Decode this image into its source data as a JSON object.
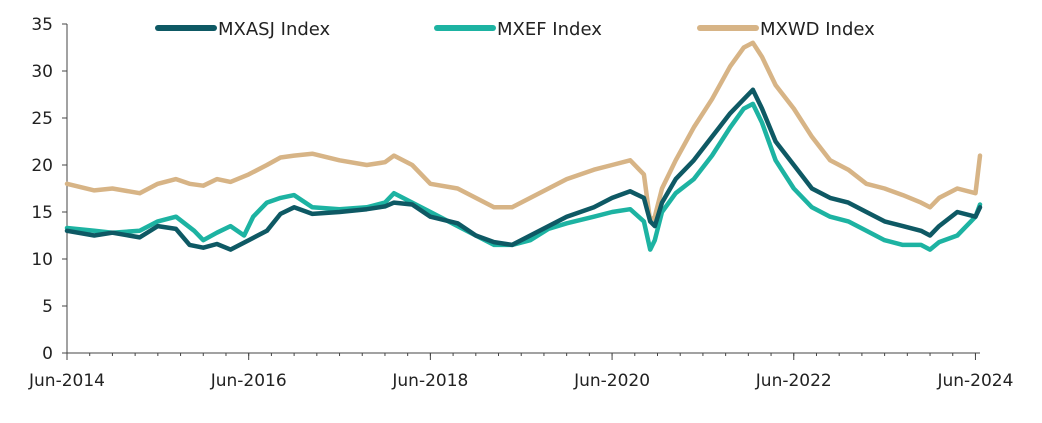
{
  "chart_data": {
    "type": "line",
    "title": "",
    "xlabel": "",
    "ylabel": "",
    "x_tick_labels": [
      "Jun-2014",
      "Jun-2016",
      "Jun-2018",
      "Jun-2020",
      "Jun-2022",
      "Jun-2024"
    ],
    "x_tick_years": [
      2014.5,
      2016.5,
      2018.5,
      2020.5,
      2022.5,
      2024.5
    ],
    "xlim": [
      2014.5,
      2024.55
    ],
    "y_tick_labels": [
      "0",
      "5",
      "10",
      "15",
      "20",
      "25",
      "30",
      "35"
    ],
    "y_ticks": [
      0,
      5,
      10,
      15,
      20,
      25,
      30,
      35
    ],
    "ylim": [
      0,
      35
    ],
    "grid": false,
    "legend_position": "top",
    "series": [
      {
        "name": "MXASJ Index",
        "color": "#0e5964",
        "points": [
          [
            2014.5,
            13.0
          ],
          [
            2014.8,
            12.5
          ],
          [
            2015.0,
            12.8
          ],
          [
            2015.3,
            12.3
          ],
          [
            2015.5,
            13.5
          ],
          [
            2015.7,
            13.2
          ],
          [
            2015.85,
            11.5
          ],
          [
            2016.0,
            11.2
          ],
          [
            2016.15,
            11.6
          ],
          [
            2016.3,
            11.0
          ],
          [
            2016.5,
            12.0
          ],
          [
            2016.7,
            13.0
          ],
          [
            2016.85,
            14.8
          ],
          [
            2017.0,
            15.5
          ],
          [
            2017.2,
            14.8
          ],
          [
            2017.5,
            15.0
          ],
          [
            2017.8,
            15.3
          ],
          [
            2018.0,
            15.6
          ],
          [
            2018.1,
            16.0
          ],
          [
            2018.3,
            15.8
          ],
          [
            2018.5,
            14.5
          ],
          [
            2018.8,
            13.8
          ],
          [
            2019.0,
            12.5
          ],
          [
            2019.2,
            11.8
          ],
          [
            2019.4,
            11.5
          ],
          [
            2019.6,
            12.5
          ],
          [
            2019.8,
            13.5
          ],
          [
            2020.0,
            14.5
          ],
          [
            2020.3,
            15.5
          ],
          [
            2020.5,
            16.5
          ],
          [
            2020.7,
            17.2
          ],
          [
            2020.85,
            16.5
          ],
          [
            2020.92,
            14.0
          ],
          [
            2020.97,
            13.5
          ],
          [
            2021.05,
            16.0
          ],
          [
            2021.2,
            18.5
          ],
          [
            2021.4,
            20.5
          ],
          [
            2021.6,
            23.0
          ],
          [
            2021.8,
            25.5
          ],
          [
            2021.95,
            27.0
          ],
          [
            2022.05,
            28.0
          ],
          [
            2022.15,
            26.0
          ],
          [
            2022.3,
            22.5
          ],
          [
            2022.5,
            20.0
          ],
          [
            2022.7,
            17.5
          ],
          [
            2022.9,
            16.5
          ],
          [
            2023.1,
            16.0
          ],
          [
            2023.3,
            15.0
          ],
          [
            2023.5,
            14.0
          ],
          [
            2023.7,
            13.5
          ],
          [
            2023.9,
            13.0
          ],
          [
            2024.0,
            12.5
          ],
          [
            2024.1,
            13.5
          ],
          [
            2024.3,
            15.0
          ],
          [
            2024.5,
            14.5
          ],
          [
            2024.55,
            15.5
          ]
        ]
      },
      {
        "name": "MXEF Index",
        "color": "#1db3a2",
        "points": [
          [
            2014.5,
            13.3
          ],
          [
            2014.8,
            13.0
          ],
          [
            2015.0,
            12.8
          ],
          [
            2015.3,
            13.0
          ],
          [
            2015.5,
            14.0
          ],
          [
            2015.7,
            14.5
          ],
          [
            2015.9,
            13.0
          ],
          [
            2016.0,
            12.0
          ],
          [
            2016.15,
            12.8
          ],
          [
            2016.3,
            13.5
          ],
          [
            2016.45,
            12.5
          ],
          [
            2016.55,
            14.5
          ],
          [
            2016.7,
            16.0
          ],
          [
            2016.85,
            16.5
          ],
          [
            2017.0,
            16.8
          ],
          [
            2017.2,
            15.5
          ],
          [
            2017.5,
            15.3
          ],
          [
            2017.8,
            15.5
          ],
          [
            2018.0,
            16.0
          ],
          [
            2018.1,
            17.0
          ],
          [
            2018.3,
            16.0
          ],
          [
            2018.5,
            15.0
          ],
          [
            2018.8,
            13.5
          ],
          [
            2019.0,
            12.5
          ],
          [
            2019.2,
            11.5
          ],
          [
            2019.4,
            11.5
          ],
          [
            2019.6,
            12.0
          ],
          [
            2019.8,
            13.2
          ],
          [
            2020.0,
            13.8
          ],
          [
            2020.3,
            14.5
          ],
          [
            2020.5,
            15.0
          ],
          [
            2020.7,
            15.3
          ],
          [
            2020.85,
            14.0
          ],
          [
            2020.92,
            11.0
          ],
          [
            2020.97,
            12.0
          ],
          [
            2021.05,
            15.0
          ],
          [
            2021.2,
            17.0
          ],
          [
            2021.4,
            18.5
          ],
          [
            2021.6,
            21.0
          ],
          [
            2021.8,
            24.0
          ],
          [
            2021.95,
            26.0
          ],
          [
            2022.05,
            26.5
          ],
          [
            2022.15,
            24.5
          ],
          [
            2022.3,
            20.5
          ],
          [
            2022.5,
            17.5
          ],
          [
            2022.7,
            15.5
          ],
          [
            2022.9,
            14.5
          ],
          [
            2023.1,
            14.0
          ],
          [
            2023.3,
            13.0
          ],
          [
            2023.5,
            12.0
          ],
          [
            2023.7,
            11.5
          ],
          [
            2023.9,
            11.5
          ],
          [
            2024.0,
            11.0
          ],
          [
            2024.1,
            11.8
          ],
          [
            2024.3,
            12.5
          ],
          [
            2024.5,
            14.5
          ],
          [
            2024.55,
            15.8
          ]
        ]
      },
      {
        "name": "MXWD Index",
        "color": "#d7b486",
        "points": [
          [
            2014.5,
            18.0
          ],
          [
            2014.8,
            17.3
          ],
          [
            2015.0,
            17.5
          ],
          [
            2015.3,
            17.0
          ],
          [
            2015.5,
            18.0
          ],
          [
            2015.7,
            18.5
          ],
          [
            2015.85,
            18.0
          ],
          [
            2016.0,
            17.8
          ],
          [
            2016.15,
            18.5
          ],
          [
            2016.3,
            18.2
          ],
          [
            2016.5,
            19.0
          ],
          [
            2016.7,
            20.0
          ],
          [
            2016.85,
            20.8
          ],
          [
            2017.0,
            21.0
          ],
          [
            2017.2,
            21.2
          ],
          [
            2017.5,
            20.5
          ],
          [
            2017.8,
            20.0
          ],
          [
            2018.0,
            20.3
          ],
          [
            2018.1,
            21.0
          ],
          [
            2018.3,
            20.0
          ],
          [
            2018.5,
            18.0
          ],
          [
            2018.8,
            17.5
          ],
          [
            2019.0,
            16.5
          ],
          [
            2019.2,
            15.5
          ],
          [
            2019.4,
            15.5
          ],
          [
            2019.6,
            16.5
          ],
          [
            2019.8,
            17.5
          ],
          [
            2020.0,
            18.5
          ],
          [
            2020.3,
            19.5
          ],
          [
            2020.5,
            20.0
          ],
          [
            2020.7,
            20.5
          ],
          [
            2020.85,
            19.0
          ],
          [
            2020.92,
            14.0
          ],
          [
            2020.97,
            14.5
          ],
          [
            2021.05,
            17.5
          ],
          [
            2021.2,
            20.5
          ],
          [
            2021.4,
            24.0
          ],
          [
            2021.6,
            27.0
          ],
          [
            2021.8,
            30.5
          ],
          [
            2021.95,
            32.5
          ],
          [
            2022.05,
            33.0
          ],
          [
            2022.15,
            31.5
          ],
          [
            2022.3,
            28.5
          ],
          [
            2022.5,
            26.0
          ],
          [
            2022.7,
            23.0
          ],
          [
            2022.9,
            20.5
          ],
          [
            2023.1,
            19.5
          ],
          [
            2023.3,
            18.0
          ],
          [
            2023.5,
            17.5
          ],
          [
            2023.7,
            16.8
          ],
          [
            2023.9,
            16.0
          ],
          [
            2024.0,
            15.5
          ],
          [
            2024.1,
            16.5
          ],
          [
            2024.3,
            17.5
          ],
          [
            2024.5,
            17.0
          ],
          [
            2024.55,
            21.0
          ]
        ]
      }
    ]
  }
}
